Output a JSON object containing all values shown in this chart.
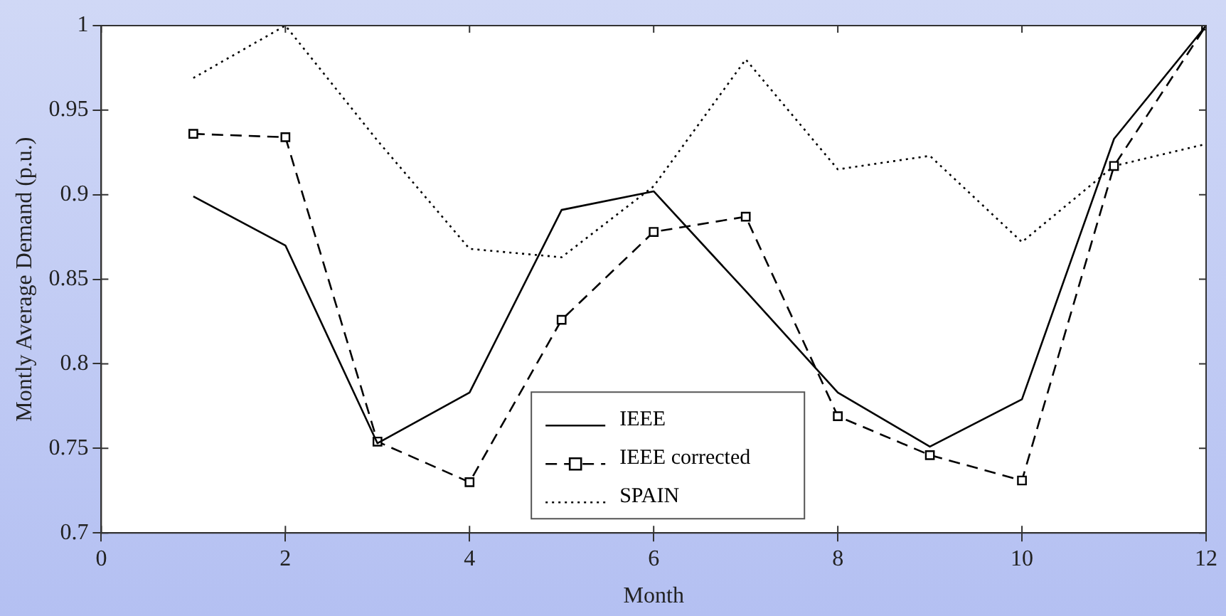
{
  "chart_data": {
    "type": "line",
    "xlabel": "Month",
    "ylabel": "Montly Average Demand (p.u.)",
    "x": [
      1,
      2,
      3,
      4,
      5,
      6,
      7,
      8,
      9,
      10,
      11,
      12
    ],
    "xlim": [
      0,
      12
    ],
    "xticks": [
      0,
      2,
      4,
      6,
      8,
      10,
      12
    ],
    "ylim": [
      0.7,
      1
    ],
    "yticks": [
      0.7,
      0.75,
      0.8,
      0.85,
      0.9,
      0.95,
      1
    ],
    "grid": false,
    "legend": "bottom",
    "series": [
      {
        "name": "IEEE",
        "color": "#000000",
        "line_style": "solid",
        "marker": "none",
        "values": [
          0.899,
          0.87,
          0.753,
          0.783,
          0.891,
          0.902,
          0.843,
          0.783,
          0.751,
          0.779,
          0.933,
          1.0
        ]
      },
      {
        "name": "IEEE corrected",
        "color": "#000000",
        "line_style": "dashed",
        "marker": "square",
        "values": [
          0.936,
          0.934,
          0.754,
          0.73,
          0.826,
          0.878,
          0.887,
          0.769,
          0.746,
          0.731,
          0.917,
          1.0
        ]
      },
      {
        "name": "SPAIN",
        "color": "#000000",
        "line_style": "dotted",
        "marker": "none",
        "values": [
          0.969,
          1.0,
          0.932,
          0.868,
          0.863,
          0.905,
          0.98,
          0.915,
          0.923,
          0.872,
          0.917,
          0.93
        ]
      }
    ]
  }
}
